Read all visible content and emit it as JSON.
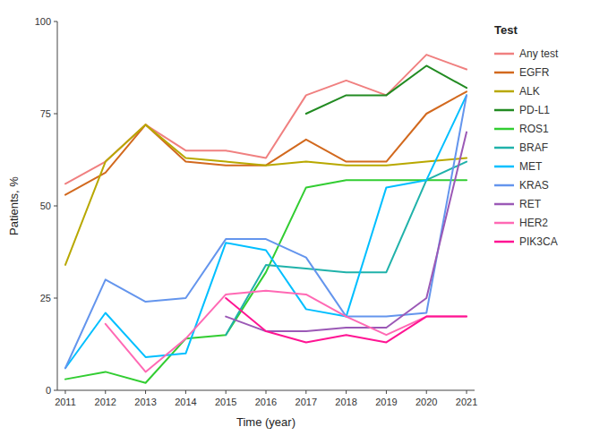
{
  "chart_data": {
    "type": "line",
    "xlabel": "Time (year)",
    "ylabel": "Patients, %",
    "legend_title": "Test",
    "x": [
      2011,
      2012,
      2013,
      2014,
      2015,
      2016,
      2017,
      2018,
      2019,
      2020,
      2021
    ],
    "xlim": [
      2010.8,
      2021.2
    ],
    "xticks": [
      2011,
      2012,
      2013,
      2014,
      2015,
      2016,
      2017,
      2018,
      2019,
      2020,
      2021
    ],
    "ylim": [
      0,
      100
    ],
    "yticks": [
      0,
      25,
      50,
      75,
      100
    ],
    "grid": false,
    "legend": "right",
    "series": [
      {
        "name": "Any test",
        "color": "#f08080",
        "values": [
          56,
          62,
          72,
          65,
          65,
          63,
          80,
          84,
          80,
          91,
          87
        ]
      },
      {
        "name": "EGFR",
        "color": "#d2691e",
        "values": [
          53,
          59,
          72,
          62,
          61,
          61,
          68,
          62,
          62,
          75,
          81
        ]
      },
      {
        "name": "ALK",
        "color": "#b8a800",
        "values": [
          34,
          62,
          72,
          63,
          62,
          61,
          62,
          61,
          61,
          62,
          63
        ]
      },
      {
        "name": "PD-L1",
        "color": "#228B22",
        "values": [
          null,
          null,
          null,
          null,
          null,
          null,
          75,
          80,
          80,
          88,
          82
        ]
      },
      {
        "name": "ROS1",
        "color": "#32CD32",
        "values": [
          3,
          5,
          2,
          14,
          15,
          32,
          55,
          57,
          57,
          57,
          57
        ]
      },
      {
        "name": "BRAF",
        "color": "#20B2AA",
        "values": [
          null,
          null,
          null,
          null,
          15,
          34,
          33,
          32,
          32,
          57,
          62
        ]
      },
      {
        "name": "MET",
        "color": "#00BFFF",
        "values": [
          6,
          21,
          9,
          10,
          40,
          38,
          22,
          20,
          55,
          57,
          80
        ]
      },
      {
        "name": "KRAS",
        "color": "#6495ED",
        "values": [
          6,
          30,
          24,
          25,
          41,
          41,
          36,
          20,
          20,
          21,
          80
        ]
      },
      {
        "name": "RET",
        "color": "#9B59B6",
        "values": [
          null,
          null,
          null,
          null,
          20,
          16,
          16,
          17,
          17,
          25,
          70
        ]
      },
      {
        "name": "HER2",
        "color": "#FF69B4",
        "values": [
          null,
          18,
          5,
          14,
          26,
          27,
          26,
          20,
          15,
          20,
          20
        ]
      },
      {
        "name": "PIK3CA",
        "color": "#FF1493",
        "values": [
          null,
          null,
          null,
          null,
          25,
          16,
          13,
          15,
          13,
          20,
          20
        ]
      }
    ]
  }
}
